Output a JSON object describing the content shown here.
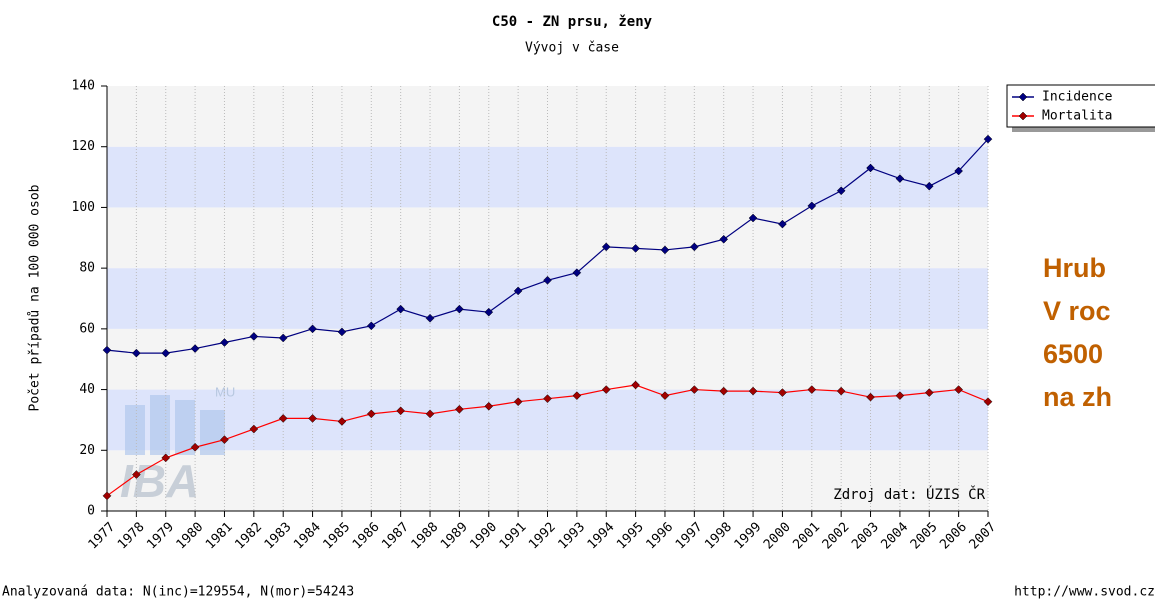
{
  "chart_data": {
    "type": "line",
    "title": "C50 - ZN prsu, ženy",
    "subtitle": "Vývoj v čase",
    "y_label": "Počet případů na 100 000 osob",
    "source": "Zdroj dat: ÚZIS ČR",
    "footer": "Analyzovaná data: N(inc)=129554, N(mor)=54243",
    "url": "http://www.svod.cz",
    "watermark": [
      "IBA",
      "MU"
    ],
    "side_text": [
      "Hrub",
      "V roc",
      "6500",
      "na zh"
    ],
    "categories": [
      "1977",
      "1978",
      "1979",
      "1980",
      "1981",
      "1982",
      "1983",
      "1984",
      "1985",
      "1986",
      "1987",
      "1988",
      "1989",
      "1990",
      "1991",
      "1992",
      "1993",
      "1994",
      "1995",
      "1996",
      "1997",
      "1998",
      "1999",
      "2000",
      "2001",
      "2002",
      "2003",
      "2004",
      "2005",
      "2006",
      "2007"
    ],
    "series": [
      {
        "name": "Incidence",
        "color": "#000080",
        "values": [
          53,
          52,
          52,
          53.5,
          55.5,
          57.5,
          57,
          60,
          59,
          61,
          66.5,
          63.5,
          66.5,
          65.5,
          72.5,
          76,
          78.5,
          87,
          86.5,
          86,
          87,
          89.5,
          96.5,
          94.5,
          100.5,
          105.5,
          113,
          109.5,
          107,
          112,
          122.5
        ]
      },
      {
        "name": "Mortalita",
        "color": "#ff0000",
        "values": [
          5,
          12,
          17.5,
          21,
          23.5,
          27,
          30.5,
          30.5,
          29.5,
          32,
          33,
          32,
          33.5,
          34.5,
          36,
          37,
          38,
          40,
          41.5,
          38,
          40,
          39.5,
          39.5,
          39,
          40,
          39.5,
          37.5,
          38,
          39,
          40,
          36
        ]
      }
    ],
    "ylim": [
      0,
      140
    ],
    "yticks": [
      0,
      20,
      40,
      60,
      80,
      100,
      120,
      140
    ],
    "grid": true,
    "legend": "top-right"
  }
}
